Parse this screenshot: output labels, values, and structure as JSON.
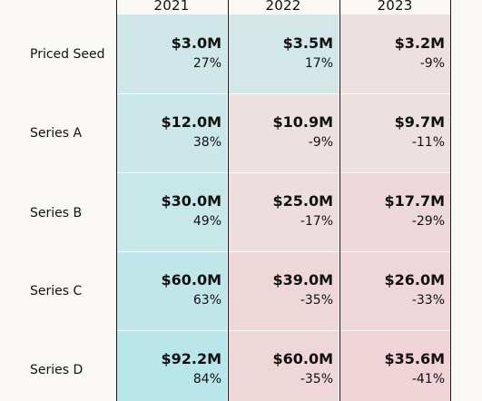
{
  "chart_data": {
    "type": "table",
    "title": "",
    "columns": [
      "2021",
      "2022",
      "2023"
    ],
    "rows": [
      {
        "label": "Priced Seed",
        "values": [
          "$3.0M",
          "$3.5M",
          "$3.2M"
        ],
        "changes": [
          "27%",
          "17%",
          "-9%"
        ],
        "change_values": [
          27,
          17,
          -9
        ]
      },
      {
        "label": "Series A",
        "values": [
          "$12.0M",
          "$10.9M",
          "$9.7M"
        ],
        "changes": [
          "38%",
          "-9%",
          "-11%"
        ],
        "change_values": [
          38,
          -9,
          -11
        ]
      },
      {
        "label": "Series B",
        "values": [
          "$30.0M",
          "$25.0M",
          "$17.7M"
        ],
        "changes": [
          "49%",
          "-17%",
          "-29%"
        ],
        "change_values": [
          49,
          -17,
          -29
        ]
      },
      {
        "label": "Series C",
        "values": [
          "$60.0M",
          "$39.0M",
          "$26.0M"
        ],
        "changes": [
          "63%",
          "-35%",
          "-33%"
        ],
        "change_values": [
          63,
          -35,
          -33
        ]
      },
      {
        "label": "Series D",
        "values": [
          "$92.2M",
          "$60.0M",
          "$35.6M"
        ],
        "changes": [
          "84%",
          "-35%",
          "-41%"
        ],
        "change_values": [
          84,
          -35,
          -41
        ]
      }
    ],
    "colors": {
      "positive": "#b9e6ea",
      "negative": "#efd3d7",
      "neutral": "#ece8e7"
    }
  }
}
